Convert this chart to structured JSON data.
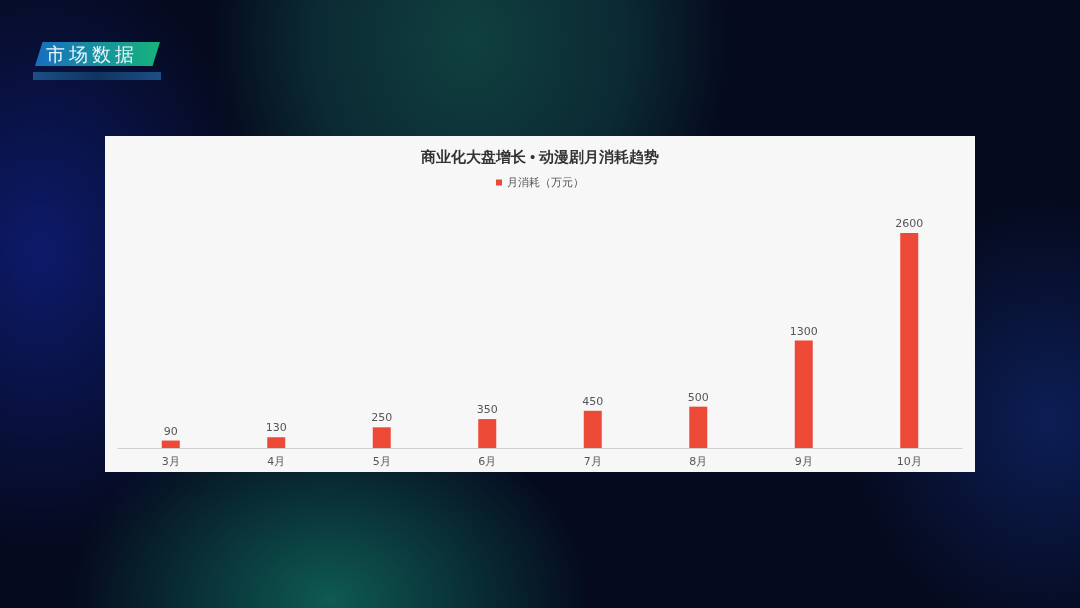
{
  "chart_data": {
    "type": "bar",
    "title": "商业化大盘增长 • 动漫剧月消耗趋势",
    "annotations": [
      "市场数据"
    ],
    "categories": [
      "3月",
      "4月",
      "5月",
      "6月",
      "7月",
      "8月",
      "9月",
      "10月"
    ],
    "series": [
      {
        "name": "月消耗（万元）",
        "color": "#ec4a36",
        "values": [
          90,
          130,
          250,
          350,
          450,
          500,
          1300,
          2600
        ]
      }
    ],
    "data_labels": true,
    "legend": "top"
  }
}
